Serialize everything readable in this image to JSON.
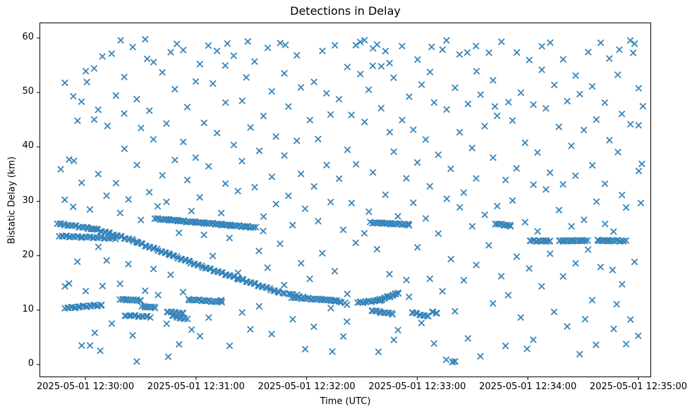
{
  "chart_data": {
    "type": "scatter",
    "title": "Detections in Delay",
    "xlabel": "Time (UTC)",
    "ylabel": "Bistatic Delay (km)",
    "marker": "x",
    "marker_color": "#1f77b4",
    "background": "#ffffff",
    "grid": false,
    "legend": "none",
    "x_unit": "seconds after 2025-05-01 12:30:00",
    "xlim": [
      -24.9,
      306.9
    ],
    "ylim": [
      -2.33,
      62.85
    ],
    "x_ticks": [
      {
        "t": 0,
        "label": "2025-05-01 12:30:00"
      },
      {
        "t": 60,
        "label": "2025-05-01 12:31:00"
      },
      {
        "t": 120,
        "label": "2025-05-01 12:32:00"
      },
      {
        "t": 180,
        "label": "2025-05-01 12:33:00"
      },
      {
        "t": 240,
        "label": "2025-05-01 12:34:00"
      },
      {
        "t": 300,
        "label": "2025-05-01 12:35:00"
      }
    ],
    "y_ticks": [
      {
        "v": 0,
        "label": "0"
      },
      {
        "v": 10,
        "label": "10"
      },
      {
        "v": 20,
        "label": "20"
      },
      {
        "v": 30,
        "label": "30"
      },
      {
        "v": 40,
        "label": "40"
      },
      {
        "v": 50,
        "label": "50"
      },
      {
        "v": 60,
        "label": "60"
      }
    ],
    "tracks": [
      {
        "name": "track-A1",
        "t0": -15,
        "t1": 5,
        "d0": 25.9,
        "d1": 24.9,
        "n": 21
      },
      {
        "name": "track-A2",
        "t0": 5,
        "t1": 25,
        "d0": 24.9,
        "d1": 22.9,
        "n": 20
      },
      {
        "name": "track-A3",
        "t0": 25,
        "t1": 45,
        "d0": 22.9,
        "d1": 20.3,
        "n": 20
      },
      {
        "name": "track-A4",
        "t0": 45,
        "t1": 65,
        "d0": 20.3,
        "d1": 17.8,
        "n": 20
      },
      {
        "name": "track-A5",
        "t0": 65,
        "t1": 85,
        "d0": 17.8,
        "d1": 15.6,
        "n": 20
      },
      {
        "name": "track-A6",
        "t0": 85,
        "t1": 105,
        "d0": 15.6,
        "d1": 13.3,
        "n": 20
      },
      {
        "name": "track-A7",
        "t0": 105,
        "t1": 118,
        "d0": 13.3,
        "d1": 12.5,
        "n": 9
      },
      {
        "name": "track-B",
        "t0": -14,
        "t1": 16,
        "d0": 23.6,
        "d1": 23.2,
        "n": 31
      },
      {
        "name": "track-C",
        "t0": 38,
        "t1": 92,
        "d0": 26.8,
        "d1": 25.2,
        "n": 72
      },
      {
        "name": "track-D",
        "t0": 155,
        "t1": 176,
        "d0": 26.1,
        "d1": 25.7,
        "n": 28
      },
      {
        "name": "track-E",
        "t0": 222,
        "t1": 231,
        "d0": 25.9,
        "d1": 25.5,
        "n": 13
      },
      {
        "name": "track-F1",
        "t0": 241,
        "t1": 252,
        "d0": 22.75,
        "d1": 22.7,
        "n": 14
      },
      {
        "name": "track-F2",
        "t0": 257,
        "t1": 272,
        "d0": 22.7,
        "d1": 22.8,
        "n": 19
      },
      {
        "name": "track-F3",
        "t0": 278,
        "t1": 293,
        "d0": 22.8,
        "d1": 22.7,
        "n": 19
      },
      {
        "name": "track-G",
        "t0": -11,
        "t1": 9,
        "d0": 10.4,
        "d1": 10.95,
        "n": 22
      },
      {
        "name": "track-H1",
        "t0": 19,
        "t1": 30,
        "d0": 11.95,
        "d1": 11.8,
        "n": 13
      },
      {
        "name": "track-H2",
        "t0": 31,
        "t1": 38,
        "d0": 10.65,
        "d1": 10.5,
        "n": 9
      },
      {
        "name": "track-H3",
        "t0": 21,
        "t1": 35,
        "d0": 9.05,
        "d1": 8.75,
        "n": 14
      },
      {
        "name": "track-H4",
        "t0": 44,
        "t1": 53,
        "d0": 9.7,
        "d1": 9.4,
        "n": 10
      },
      {
        "name": "track-H5",
        "t0": 47,
        "t1": 55,
        "d0": 9.0,
        "d1": 8.3,
        "n": 9
      },
      {
        "name": "track-I",
        "t0": 56,
        "t1": 74,
        "d0": 11.95,
        "d1": 11.5,
        "n": 22
      },
      {
        "name": "track-J1",
        "t0": 112,
        "t1": 136,
        "d0": 12.35,
        "d1": 11.75,
        "n": 29
      },
      {
        "name": "track-J2",
        "t0": 136,
        "t1": 142,
        "d0": 11.7,
        "d1": 11.1,
        "n": 5
      },
      {
        "name": "track-K1",
        "t0": 148,
        "t1": 160,
        "d0": 11.35,
        "d1": 11.85,
        "n": 17
      },
      {
        "name": "track-K2",
        "t0": 160,
        "t1": 170,
        "d0": 11.9,
        "d1": 13.15,
        "n": 15
      },
      {
        "name": "track-L",
        "t0": 155,
        "t1": 167,
        "d0": 9.95,
        "d1": 9.3,
        "n": 13
      },
      {
        "name": "track-M1",
        "t0": 177,
        "t1": 186,
        "d0": 9.55,
        "d1": 8.8,
        "n": 10
      },
      {
        "name": "track-M2",
        "t0": 188,
        "t1": 191,
        "d0": 9.6,
        "d1": 9.5,
        "n": 4
      },
      {
        "name": "track-N",
        "t0": 199,
        "t1": 201,
        "d0": 0.55,
        "d1": 0.6,
        "n": 4
      }
    ],
    "clutter": [
      -13,
      35.7,
      -12,
      14.3,
      -11,
      51.8,
      -10,
      30.4,
      -9,
      37.9,
      -8,
      15.2,
      -7,
      48.9,
      -6,
      28.7,
      -5,
      44.6,
      -4,
      18.8,
      -3,
      3.5,
      -2,
      33.5,
      -1,
      48.5,
      0,
      54.2,
      1,
      13.9,
      2,
      3.2,
      3,
      28.3,
      4,
      44.9,
      5,
      54.4,
      6,
      21.7,
      7,
      35.2,
      8,
      47.1,
      9,
      14.8,
      10,
      56.3,
      11,
      18.9,
      12,
      30.9,
      0,
      51.9,
      -6,
      37.5,
      4,
      6.0,
      8,
      2.8,
      13,
      44.2,
      14,
      7.2,
      15,
      56.9,
      16,
      33.2,
      17,
      49.4,
      18,
      27.9,
      19,
      15.0,
      20,
      39.9,
      21,
      53.2,
      22,
      45.8,
      23,
      30.1,
      24,
      18.3,
      25,
      58.3,
      26,
      5.4,
      27,
      36.8,
      28,
      49.0,
      29,
      0.9,
      30,
      43.1,
      31,
      26.3,
      32,
      59.6,
      33,
      13.5,
      34,
      46.7,
      35,
      31.8,
      36,
      55.8,
      37,
      17.9,
      38,
      41.0,
      39,
      28.8,
      20,
      59.4,
      33,
      56.1,
      40,
      12.8,
      41,
      34.9,
      42,
      53.9,
      43,
      7.8,
      44,
      29.5,
      45,
      44.0,
      46,
      57.2,
      47,
      16.4,
      48,
      37.6,
      49,
      50.7,
      50,
      3.9,
      51,
      24.5,
      52,
      41.3,
      53,
      57.5,
      54,
      13.1,
      55,
      33.8,
      56,
      47.3,
      57,
      6.5,
      58,
      28.4,
      59,
      52.3,
      60,
      38.4,
      61,
      4.9,
      62,
      55.0,
      63,
      30.6,
      64,
      44.4,
      65,
      23.9,
      66,
      58.8,
      50,
      59.2,
      44,
      1.8,
      67,
      8.3,
      68,
      36.2,
      69,
      51.5,
      70,
      19.9,
      71,
      42.6,
      72,
      57.8,
      73,
      28.1,
      74,
      12.2,
      75,
      47.8,
      76,
      33.0,
      77,
      54.8,
      78,
      3.4,
      79,
      23.3,
      80,
      40.5,
      81,
      57.0,
      82,
      17.2,
      83,
      31.5,
      84,
      48.2,
      85,
      9.4,
      86,
      37.3,
      87,
      52.8,
      88,
      25.4,
      89,
      43.8,
      90,
      6.8,
      91,
      32.2,
      92,
      55.4,
      93,
      20.7,
      88,
      59.3,
      78,
      59.0,
      94,
      39.4,
      95,
      10.9,
      96,
      27.5,
      97,
      45.3,
      98,
      57.9,
      99,
      17.6,
      100,
      34.4,
      101,
      50.2,
      102,
      5.7,
      103,
      29.7,
      104,
      42.2,
      105,
      59.5,
      106,
      21.9,
      107,
      38.2,
      108,
      53.4,
      109,
      14.6,
      110,
      31.1,
      111,
      47.6,
      112,
      8.6,
      113,
      26.0,
      114,
      40.8,
      115,
      56.6,
      116,
      18.5,
      117,
      35.0,
      118,
      51.0,
      119,
      3.0,
      120,
      28.9,
      108,
      59.1,
      97,
      24.2,
      121,
      44.7,
      122,
      15.6,
      123,
      32.7,
      124,
      52.0,
      125,
      7.1,
      126,
      26.6,
      127,
      41.8,
      128,
      57.3,
      129,
      20.2,
      130,
      36.5,
      131,
      49.8,
      132,
      10.4,
      133,
      30.0,
      134,
      46.2,
      135,
      59.0,
      136,
      16.8,
      137,
      33.9,
      138,
      48.6,
      139,
      5.1,
      140,
      24.8,
      141,
      39.6,
      142,
      54.9,
      143,
      13.3,
      144,
      29.3,
      145,
      45.6,
      146,
      58.5,
      147,
      22.3,
      133,
      2.4,
      142,
      8.0,
      148,
      37.0,
      149,
      53.7,
      150,
      58.9,
      151,
      44.3,
      152,
      59.4,
      153,
      28.0,
      154,
      50.5,
      155,
      58.2,
      156,
      35.5,
      157,
      55.2,
      158,
      59.2,
      159,
      20.9,
      160,
      54.6,
      161,
      47.0,
      162,
      57.6,
      163,
      31.3,
      164,
      42.9,
      165,
      55.7,
      166,
      17.0,
      167,
      38.8,
      168,
      52.5,
      169,
      6.2,
      170,
      27.2,
      171,
      45.0,
      172,
      58.7,
      173,
      15.8,
      174,
      34.6,
      160,
      2.0,
      151,
      23.9,
      168,
      4.4,
      175,
      49.2,
      176,
      12.5,
      177,
      29.9,
      178,
      43.4,
      179,
      56.4,
      180,
      21.2,
      181,
      36.9,
      182,
      51.3,
      183,
      7.6,
      184,
      26.9,
      185,
      41.5,
      186,
      54.0,
      187,
      16.1,
      188,
      32.4,
      189,
      47.9,
      190,
      3.7,
      191,
      24.0,
      192,
      38.6,
      193,
      58.0,
      194,
      13.7,
      195,
      30.8,
      196,
      46.5,
      197,
      59.3,
      198,
      19.2,
      199,
      35.9,
      200,
      50.9,
      201,
      9.9,
      187,
      58.6,
      196,
      1.2,
      202,
      28.5,
      203,
      42.4,
      204,
      56.8,
      205,
      15.4,
      206,
      31.6,
      207,
      48.0,
      208,
      5.0,
      209,
      25.7,
      210,
      40.2,
      211,
      53.6,
      212,
      18.1,
      213,
      34.1,
      214,
      49.6,
      215,
      1.6,
      216,
      27.7,
      217,
      44.1,
      218,
      57.7,
      219,
      21.6,
      220,
      37.8,
      221,
      52.1,
      222,
      11.2,
      223,
      29.2,
      224,
      45.9,
      225,
      59.6,
      226,
      16.6,
      227,
      33.6,
      228,
      3.2,
      213,
      58.4,
      222,
      47.4,
      208,
      57.4,
      229,
      48.4,
      230,
      13.0,
      231,
      30.5,
      232,
      44.5,
      233,
      57.1,
      234,
      19.7,
      235,
      36.0,
      236,
      50.0,
      237,
      8.8,
      238,
      26.4,
      239,
      41.1,
      240,
      55.6,
      241,
      17.4,
      242,
      32.9,
      243,
      47.7,
      244,
      4.6,
      245,
      24.6,
      246,
      39.2,
      247,
      54.5,
      248,
      14.0,
      249,
      31.9,
      250,
      46.9,
      251,
      59.1,
      252,
      20.4,
      253,
      35.4,
      254,
      51.6,
      255,
      10.0,
      247,
      58.1,
      240,
      2.6,
      256,
      28.2,
      257,
      43.6,
      258,
      56.1,
      259,
      16.3,
      260,
      33.3,
      261,
      48.7,
      262,
      6.6,
      263,
      25.1,
      264,
      40.0,
      265,
      53.0,
      266,
      18.6,
      267,
      34.8,
      268,
      49.9,
      269,
      2.2,
      270,
      27.0,
      271,
      42.8,
      272,
      57.2,
      273,
      21.0,
      274,
      36.6,
      275,
      51.2,
      276,
      12.0,
      277,
      30.2,
      278,
      45.4,
      279,
      58.8,
      280,
      17.7,
      281,
      33.1,
      282,
      48.1,
      270,
      8.4,
      277,
      3.8,
      283,
      26.1,
      284,
      41.6,
      285,
      55.9,
      286,
      6.3,
      287,
      24.3,
      288,
      39.0,
      289,
      53.3,
      290,
      14.9,
      291,
      31.4,
      292,
      46.4,
      293,
      3.4,
      294,
      28.6,
      295,
      44.0,
      296,
      59.5,
      297,
      59.0,
      298,
      19.0,
      299,
      35.8,
      300,
      51.1,
      301,
      43.6,
      302,
      47.2,
      302,
      29.5,
      295,
      8.2,
      290,
      57.9,
      285,
      17.5,
      300,
      5.5,
      303,
      37.2,
      288,
      10.7,
      298,
      57.0
    ]
  }
}
